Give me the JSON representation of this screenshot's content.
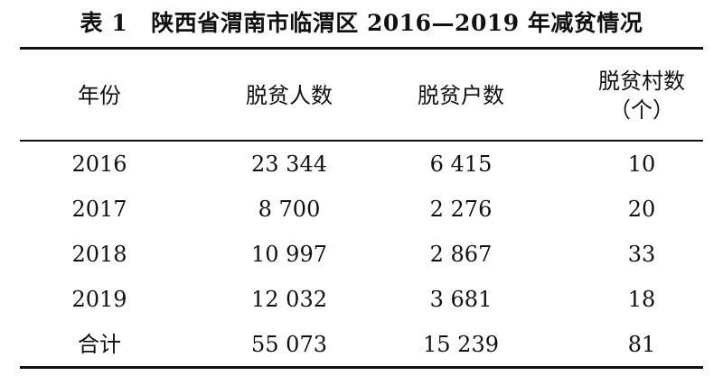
{
  "caption": {
    "label": "表 1",
    "title": "陕西省渭南市临渭区 2016—2019 年减贫情况"
  },
  "table": {
    "headers": [
      {
        "line1": "年份",
        "line2": ""
      },
      {
        "line1": "脱贫人数",
        "line2": ""
      },
      {
        "line1": "脱贫户数",
        "line2": ""
      },
      {
        "line1": "脱贫村数",
        "line2": "（个）"
      }
    ],
    "rows": [
      [
        "2016",
        "23 344",
        "6 415",
        "10"
      ],
      [
        "2017",
        "8 700",
        "2 276",
        "20"
      ],
      [
        "2018",
        "10 997",
        "2 867",
        "33"
      ],
      [
        "2019",
        "12 032",
        "3 681",
        "18"
      ],
      [
        "合计",
        "55 073",
        "15 239",
        "81"
      ]
    ]
  }
}
